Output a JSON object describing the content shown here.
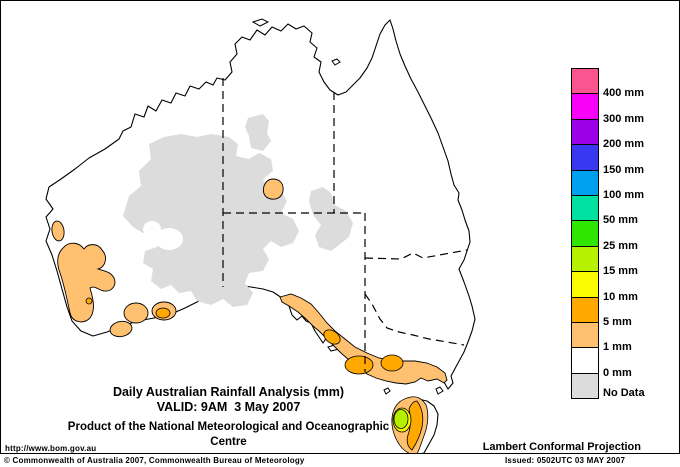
{
  "titles": {
    "line1": "Daily Australian Rainfall Analysis (mm)",
    "line2": "VALID: 9AM  3 May 2007",
    "line3": "Product of the National Meteorological and Oceanographic Centre"
  },
  "corner": {
    "url": "http://www.bom.gov.au",
    "projection": "Lambert Conformal Projection"
  },
  "footer": {
    "copyright": "© Commonwealth of Australia 2007, Commonwealth Bureau of Meteorology",
    "issued": "Issued: 0502UTC 03 MAY 2007"
  },
  "legend": {
    "items": [
      {
        "color": "#FA5590",
        "label": "400 mm"
      },
      {
        "color": "#F800F8",
        "label": "300 mm"
      },
      {
        "color": "#9C00E8",
        "label": "200 mm"
      },
      {
        "color": "#3838F0",
        "label": "150 mm"
      },
      {
        "color": "#00A0F0",
        "label": "100 mm"
      },
      {
        "color": "#00E0A0",
        "label": "50 mm"
      },
      {
        "color": "#2EE600",
        "label": "25 mm"
      },
      {
        "color": "#B6F200",
        "label": "15 mm"
      },
      {
        "color": "#FAFA00",
        "label": "10 mm"
      },
      {
        "color": "#FFA800",
        "label": "5 mm"
      },
      {
        "color": "#FFC070",
        "label": "1 mm"
      },
      {
        "color": "#FFFFFF",
        "label": "0 mm"
      },
      {
        "color": "#DCDCDC",
        "label": "No Data"
      }
    ]
  },
  "colors": {
    "land": "#FFFFFF",
    "coastline": "#000000",
    "no_data": "#DCDCDC",
    "rain_1mm": "#FFC070",
    "rain_5mm": "#FFA800",
    "rain_10mm": "#FAFA00",
    "rain_15mm": "#B4F000"
  }
}
